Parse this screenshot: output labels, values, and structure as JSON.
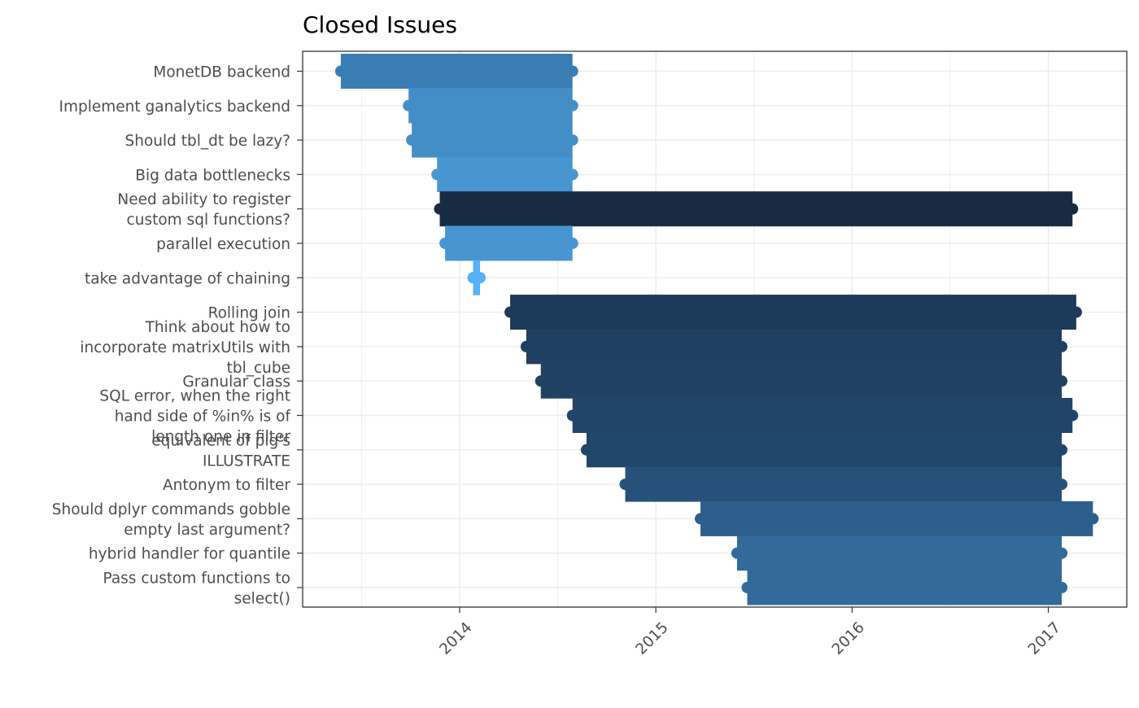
{
  "chart_data": {
    "type": "bar",
    "orientation": "horizontal",
    "title": "Closed Issues",
    "xlabel": "",
    "ylabel": "",
    "x_axis_type": "date",
    "xlim": [
      2013.2,
      2017.4
    ],
    "x_ticks": [
      "2014",
      "2015",
      "2016",
      "2017"
    ],
    "grid": true,
    "legend": "none",
    "categories": [
      [
        "MonetDB backend"
      ],
      [
        "Implement ganalytics backend"
      ],
      [
        "Should tbl_dt be lazy?"
      ],
      [
        "Big data bottlenecks"
      ],
      [
        "Need ability to register",
        "custom sql functions?"
      ],
      [
        "parallel execution"
      ],
      [
        "take advantage of chaining"
      ],
      [
        "Rolling join"
      ],
      [
        "Think about how to",
        "incorporate matrixUtils with",
        "tbl_cube"
      ],
      [
        "Granular class"
      ],
      [
        "SQL error, when the right",
        "hand side of %in% is of",
        "length one in filter"
      ],
      [
        "equivalent of pig's",
        "ILLUSTRATE"
      ],
      [
        "Antonym to filter"
      ],
      [
        "Should dplyr commands gobble",
        "empty last argument?"
      ],
      [
        "hybrid handler for quantile"
      ],
      [
        "Pass custom functions to",
        "select()"
      ]
    ],
    "values": [
      {
        "start": "2013-05-25",
        "end": "2014-07-30"
      },
      {
        "start": "2013-09-28",
        "end": "2014-07-30"
      },
      {
        "start": "2013-10-04",
        "end": "2014-07-30"
      },
      {
        "start": "2013-11-20",
        "end": "2014-07-30"
      },
      {
        "start": "2013-11-25",
        "end": "2017-02-15"
      },
      {
        "start": "2013-12-05",
        "end": "2014-07-30"
      },
      {
        "start": "2014-01-26",
        "end": "2014-02-08"
      },
      {
        "start": "2014-04-05",
        "end": "2017-02-22"
      },
      {
        "start": "2014-05-05",
        "end": "2017-01-26"
      },
      {
        "start": "2014-06-01",
        "end": "2017-01-26"
      },
      {
        "start": "2014-07-30",
        "end": "2017-02-15"
      },
      {
        "start": "2014-08-25",
        "end": "2017-01-26"
      },
      {
        "start": "2014-11-05",
        "end": "2017-01-26"
      },
      {
        "start": "2015-03-25",
        "end": "2017-03-25"
      },
      {
        "start": "2015-06-01",
        "end": "2017-01-26"
      },
      {
        "start": "2015-06-20",
        "end": "2017-01-26"
      }
    ],
    "bar_colors": [
      "#3a7db5",
      "#448ec8",
      "#448ec8",
      "#4796d1",
      "#172c43",
      "#4796d1",
      "#56b1f7",
      "#1c3a59",
      "#1f4060",
      "#204262",
      "#21446a",
      "#21466b",
      "#26527a",
      "#2d5f8c",
      "#326b9a",
      "#326b9a"
    ]
  }
}
